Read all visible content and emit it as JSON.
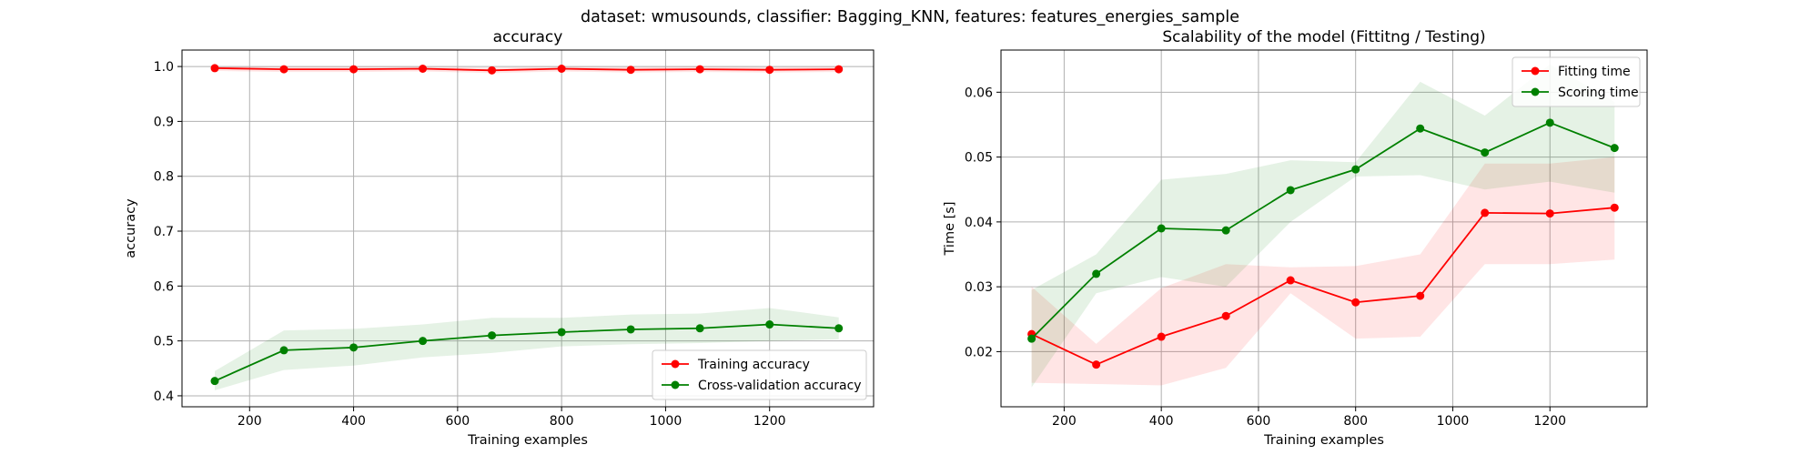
{
  "suptitle": "dataset: wmusounds, classifier: Bagging_KNN, features: features_energies_sample",
  "chart_data": [
    {
      "type": "line",
      "title": "accuracy",
      "xlabel": "Training examples",
      "ylabel": "accuracy",
      "xlim": [
        70,
        1400
      ],
      "ylim": [
        0.38,
        1.03
      ],
      "xticks": [
        200,
        400,
        600,
        800,
        1000,
        1200
      ],
      "yticks": [
        0.4,
        0.5,
        0.6,
        0.7,
        0.8,
        0.9,
        1.0
      ],
      "ytick_labels": [
        "0.4",
        "0.5",
        "0.6",
        "0.7",
        "0.8",
        "0.9",
        "1.0"
      ],
      "grid": true,
      "legend": "lower-right",
      "x": [
        133,
        266,
        400,
        533,
        666,
        800,
        933,
        1066,
        1200,
        1333
      ],
      "series": [
        {
          "name": "Training accuracy",
          "color": "#ff0000",
          "band_color": "#ff0000",
          "values": [
            0.997,
            0.995,
            0.995,
            0.996,
            0.993,
            0.996,
            0.994,
            0.995,
            0.994,
            0.995
          ],
          "lower": [
            0.992,
            0.99,
            0.99,
            0.991,
            0.988,
            0.991,
            0.989,
            0.99,
            0.989,
            0.99
          ],
          "upper": [
            1.0,
            1.0,
            1.0,
            1.0,
            0.998,
            1.0,
            0.999,
            1.0,
            0.999,
            1.0
          ]
        },
        {
          "name": "Cross-validation accuracy",
          "color": "#008000",
          "band_color": "#008000",
          "values": [
            0.427,
            0.483,
            0.488,
            0.5,
            0.51,
            0.516,
            0.521,
            0.523,
            0.53,
            0.523
          ],
          "lower": [
            0.41,
            0.447,
            0.455,
            0.47,
            0.478,
            0.49,
            0.494,
            0.496,
            0.5,
            0.503
          ],
          "upper": [
            0.445,
            0.519,
            0.522,
            0.53,
            0.542,
            0.542,
            0.548,
            0.55,
            0.56,
            0.543
          ]
        }
      ]
    },
    {
      "type": "line",
      "title": "Scalability of the model (Fittitng / Testing)",
      "xlabel": "Training examples",
      "ylabel": "Time [s]",
      "xlim": [
        70,
        1400
      ],
      "ylim": [
        0.0115,
        0.0665
      ],
      "xticks": [
        200,
        400,
        600,
        800,
        1000,
        1200
      ],
      "yticks": [
        0.02,
        0.03,
        0.04,
        0.05,
        0.06
      ],
      "ytick_labels": [
        "0.02",
        "0.03",
        "0.04",
        "0.05",
        "0.06"
      ],
      "grid": true,
      "legend": "upper-right",
      "x": [
        133,
        266,
        400,
        533,
        666,
        800,
        933,
        1066,
        1200,
        1333
      ],
      "series": [
        {
          "name": "Fitting time",
          "color": "#ff0000",
          "band_color": "#ff0000",
          "values": [
            0.0227,
            0.018,
            0.0223,
            0.0255,
            0.031,
            0.0276,
            0.0286,
            0.0414,
            0.0413,
            0.0422
          ],
          "lower": [
            0.0152,
            0.015,
            0.0148,
            0.0175,
            0.029,
            0.022,
            0.0223,
            0.0335,
            0.0335,
            0.0342
          ],
          "upper": [
            0.03,
            0.0212,
            0.0298,
            0.0335,
            0.033,
            0.0332,
            0.035,
            0.049,
            0.049,
            0.05
          ]
        },
        {
          "name": "Scoring time",
          "color": "#008000",
          "band_color": "#008000",
          "values": [
            0.022,
            0.032,
            0.039,
            0.0387,
            0.0449,
            0.0481,
            0.0544,
            0.0507,
            0.0553,
            0.0514
          ],
          "lower": [
            0.0145,
            0.029,
            0.0315,
            0.03,
            0.04,
            0.047,
            0.0472,
            0.045,
            0.0462,
            0.0445
          ],
          "upper": [
            0.0295,
            0.035,
            0.0465,
            0.0474,
            0.0495,
            0.0492,
            0.0616,
            0.0564,
            0.0643,
            0.0585
          ]
        }
      ]
    }
  ]
}
